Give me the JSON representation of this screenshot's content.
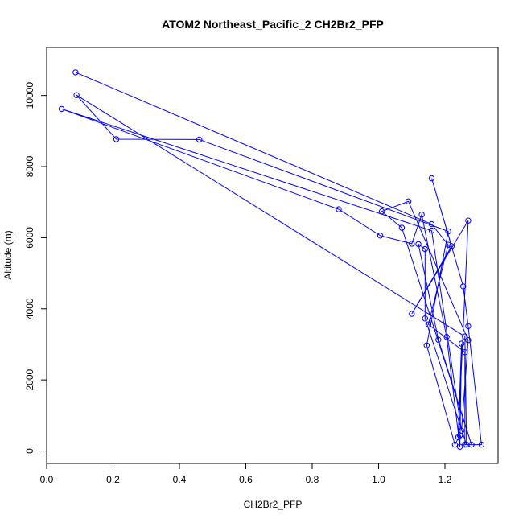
{
  "chart_data": {
    "type": "line",
    "title": "ATOM2 Northeast_Pacific_2 CH2Br2_PFP",
    "xlabel": "CH2Br2_PFP",
    "ylabel": "Altitude (m)",
    "xlim": [
      0.0,
      1.36
    ],
    "ylim": [
      -350,
      11350
    ],
    "xticks": [
      "0.0",
      "0.2",
      "0.4",
      "0.6",
      "0.8",
      "1.0",
      "1.2"
    ],
    "yticks": [
      "0",
      "2000",
      "4000",
      "6000",
      "8000",
      "10000"
    ],
    "grid": false,
    "legend": "none",
    "color": "#0000ff",
    "series": [
      {
        "points": [
          [
            0.087,
            10650
          ],
          [
            1.16,
            6380
          ],
          [
            1.21,
            5800
          ],
          [
            1.15,
            3560
          ],
          [
            1.26,
            2780
          ],
          [
            1.26,
            180
          ],
          [
            1.31,
            180
          ],
          [
            1.27,
            3510
          ],
          [
            1.255,
            4630
          ],
          [
            1.16,
            7670
          ],
          [
            1.22,
            5760
          ],
          [
            1.1,
            3860
          ],
          [
            1.27,
            6480
          ],
          [
            1.24,
            390
          ],
          [
            1.25,
            3020
          ],
          [
            1.245,
            120
          ],
          [
            1.205,
            3210
          ],
          [
            1.13,
            6650
          ],
          [
            1.1,
            5830
          ],
          [
            1.005,
            6060
          ],
          [
            0.88,
            6800
          ],
          [
            0.045,
            9620
          ],
          [
            1.16,
            6200
          ],
          [
            1.25,
            570
          ],
          [
            1.27,
            3120
          ],
          [
            1.09,
            7020
          ],
          [
            1.01,
            6740
          ],
          [
            1.07,
            6280
          ],
          [
            1.28,
            180
          ],
          [
            1.18,
            3130
          ],
          [
            1.12,
            5820
          ],
          [
            1.14,
            5680
          ],
          [
            1.14,
            3730
          ],
          [
            1.265,
            180
          ],
          [
            1.26,
            3220
          ],
          [
            0.09,
            10010
          ],
          [
            0.21,
            8770
          ],
          [
            0.46,
            8760
          ],
          [
            1.21,
            6180
          ],
          [
            1.145,
            2970
          ],
          [
            1.23,
            180
          ],
          [
            1.245,
            440
          ]
        ]
      }
    ]
  }
}
